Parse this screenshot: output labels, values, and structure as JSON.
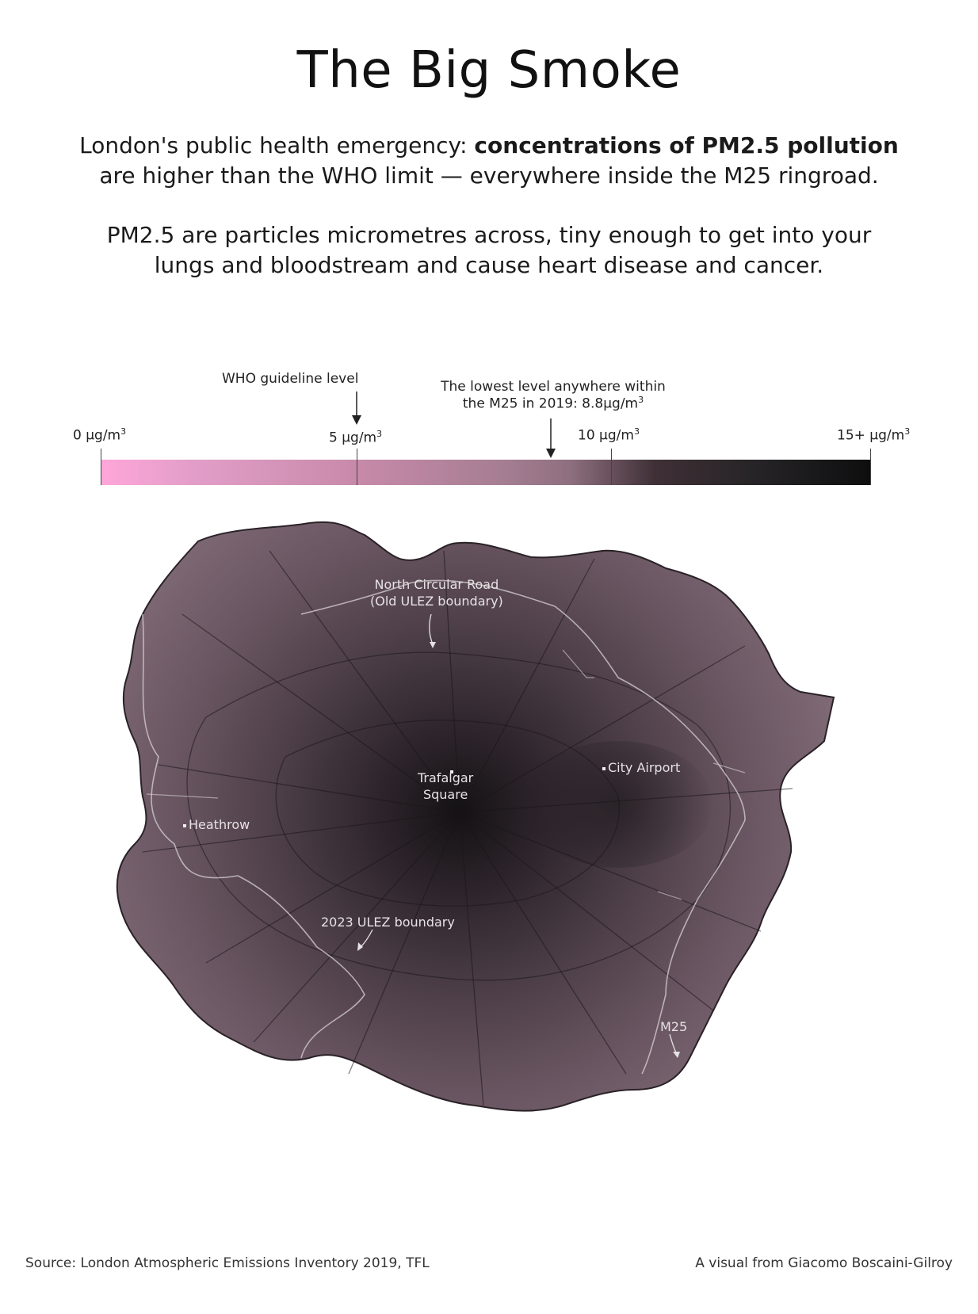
{
  "title": "The Big Smoke",
  "intro": {
    "line1_pre": "London's public health emergency: ",
    "line1_bold": "concentrations of PM2.5 pollution",
    "line2": "are higher than the WHO limit — everywhere inside the M25 ringroad."
  },
  "explain": {
    "line1": "PM2.5 are particles micrometres across, tiny enough to get into your",
    "line2": "lungs and bloodstream and cause heart disease and cancer."
  },
  "legend": {
    "unit_sup": "3",
    "ticks": [
      {
        "label": "0 μg/m",
        "value": 0
      },
      {
        "label": "5 μg/m",
        "value": 5
      },
      {
        "label": "10 μg/m",
        "value": 10
      },
      {
        "label": "15+ μg/m",
        "value": 15
      }
    ],
    "who_label": "WHO guideline level",
    "who_value": 5,
    "lowest_label_line1": "The lowest level anywhere within",
    "lowest_label_line2": "the M25 in 2019: 8.8μg/m",
    "lowest_value": 8.8,
    "colors": [
      "#ffa6d9",
      "#c88aaa",
      "#8e6f7f",
      "#262426",
      "#0e0e0f"
    ]
  },
  "map": {
    "labels": {
      "north_circular_1": "North Circular Road",
      "north_circular_2": "(Old ULEZ boundary)",
      "trafalgar_1": "Trafalgar",
      "trafalgar_2": "Square",
      "city_airport": "City Airport",
      "heathrow": "Heathrow",
      "ulez_2023": "2023 ULEZ boundary",
      "m25": "M25"
    },
    "colors": {
      "outer": "#7a6470",
      "centre": "#141214",
      "boundary": "#cfc9cc"
    }
  },
  "footer": {
    "source": "Source: London Atmospheric Emissions Inventory 2019, TFL",
    "credit": "A visual from Giacomo Boscaini-Gilroy"
  }
}
